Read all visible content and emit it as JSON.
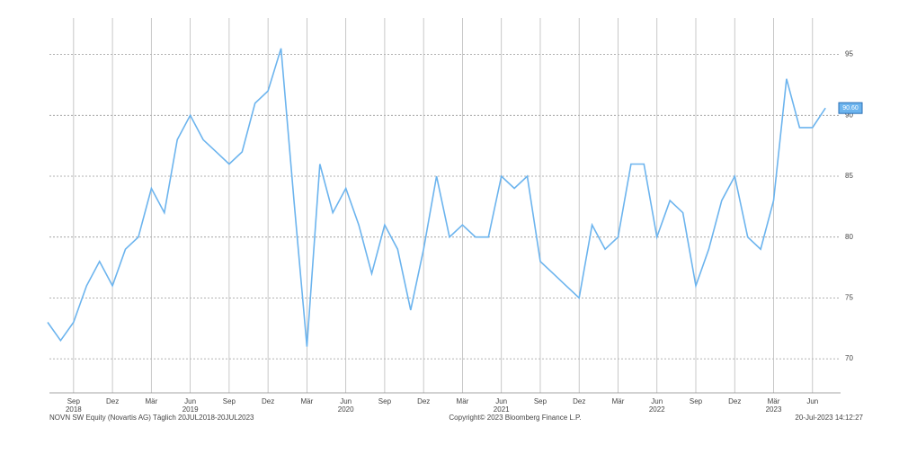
{
  "chart_data": {
    "type": "line",
    "x": [
      "2018-07",
      "2018-08",
      "2018-09",
      "2018-10",
      "2018-11",
      "2018-12",
      "2019-01",
      "2019-02",
      "2019-03",
      "2019-04",
      "2019-05",
      "2019-06",
      "2019-07",
      "2019-08",
      "2019-09",
      "2019-10",
      "2019-11",
      "2019-12",
      "2020-01",
      "2020-02",
      "2020-03",
      "2020-04",
      "2020-05",
      "2020-06",
      "2020-07",
      "2020-08",
      "2020-09",
      "2020-10",
      "2020-11",
      "2020-12",
      "2021-01",
      "2021-02",
      "2021-03",
      "2021-04",
      "2021-05",
      "2021-06",
      "2021-07",
      "2021-08",
      "2021-09",
      "2021-10",
      "2021-11",
      "2021-12",
      "2022-01",
      "2022-02",
      "2022-03",
      "2022-04",
      "2022-05",
      "2022-06",
      "2022-07",
      "2022-08",
      "2022-09",
      "2022-10",
      "2022-11",
      "2022-12",
      "2023-01",
      "2023-02",
      "2023-03",
      "2023-04",
      "2023-05",
      "2023-06",
      "2023-07"
    ],
    "series": [
      {
        "name": "NOVN SW Equity (Novartis AG)",
        "color": "#6cb4ee",
        "values": [
          73,
          71.5,
          73,
          76,
          78,
          76,
          79,
          80,
          84,
          82,
          88,
          90,
          88,
          87,
          86,
          87,
          91,
          92,
          95.5,
          83,
          71,
          86,
          82,
          84,
          81,
          77,
          81,
          79,
          74,
          79,
          85,
          80,
          81,
          80,
          80,
          85,
          84,
          85,
          78,
          77,
          76,
          75,
          81,
          79,
          80,
          86,
          86,
          80,
          83,
          82,
          76,
          79,
          83,
          85,
          80,
          79,
          83,
          93,
          89,
          89,
          90.6
        ]
      }
    ],
    "last_value": {
      "value": 90.6,
      "label": "90.60"
    },
    "ylim": [
      67.2,
      98
    ],
    "yticks": [
      70,
      75,
      80,
      85,
      90,
      95
    ],
    "xticks": [
      {
        "value": "2018-09",
        "label": "Sep"
      },
      {
        "value": "2018-12",
        "label": "Dez"
      },
      {
        "value": "2019-03",
        "label": "Mär"
      },
      {
        "value": "2019-06",
        "label": "Jun"
      },
      {
        "value": "2019-09",
        "label": "Sep"
      },
      {
        "value": "2019-12",
        "label": "Dez"
      },
      {
        "value": "2020-03",
        "label": "Mär"
      },
      {
        "value": "2020-06",
        "label": "Jun"
      },
      {
        "value": "2020-09",
        "label": "Sep"
      },
      {
        "value": "2020-12",
        "label": "Dez"
      },
      {
        "value": "2021-03",
        "label": "Mär"
      },
      {
        "value": "2021-06",
        "label": "Jun"
      },
      {
        "value": "2021-09",
        "label": "Sep"
      },
      {
        "value": "2021-12",
        "label": "Dez"
      },
      {
        "value": "2022-03",
        "label": "Mär"
      },
      {
        "value": "2022-06",
        "label": "Jun"
      },
      {
        "value": "2022-09",
        "label": "Sep"
      },
      {
        "value": "2022-12",
        "label": "Dez"
      },
      {
        "value": "2023-03",
        "label": "Mär"
      },
      {
        "value": "2023-06",
        "label": "Jun"
      }
    ],
    "year_labels": [
      {
        "value": "2018-09",
        "label": "2018"
      },
      {
        "value": "2019-06",
        "label": "2019"
      },
      {
        "value": "2020-06",
        "label": "2020"
      },
      {
        "value": "2021-06",
        "label": "2021"
      },
      {
        "value": "2022-06",
        "label": "2022"
      },
      {
        "value": "2023-03",
        "label": "2023"
      }
    ],
    "grid": true,
    "footer_left": "NOVN SW Equity (Novartis AG)  Täglich 20JUL2018-20JUL2023",
    "footer_center": "Copyright© 2023 Bloomberg Finance L.P.",
    "footer_right": "20-Jul-2023 14:12:27"
  }
}
